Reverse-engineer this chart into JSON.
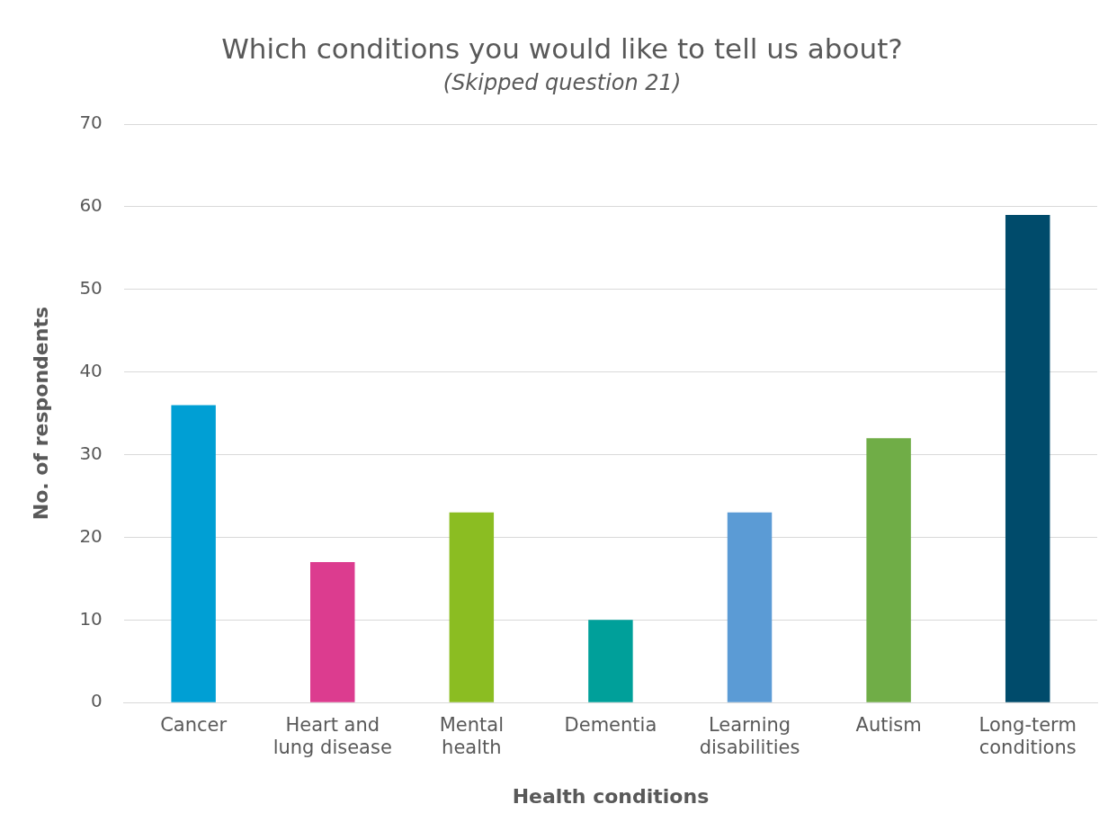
{
  "chart_data": {
    "type": "bar",
    "title": "Which conditions you would like to tell us about?",
    "subtitle": "(Skipped question 21)",
    "xlabel": "Health conditions",
    "ylabel": "No. of respondents",
    "categories": [
      "Cancer",
      "Heart and lung disease",
      "Mental health",
      "Dementia",
      "Learning disabilities",
      "Autism",
      "Long-term conditions"
    ],
    "values": [
      36,
      17,
      23,
      10,
      23,
      32,
      59
    ],
    "colors": [
      "#009fd4",
      "#dc3c8f",
      "#8bbd22",
      "#00a09a",
      "#5b9bd5",
      "#70ad47",
      "#004b6b"
    ],
    "ylim": [
      0,
      70
    ],
    "yticks": [
      0,
      10,
      20,
      30,
      40,
      50,
      60,
      70
    ],
    "grid": "y",
    "legend": false
  }
}
